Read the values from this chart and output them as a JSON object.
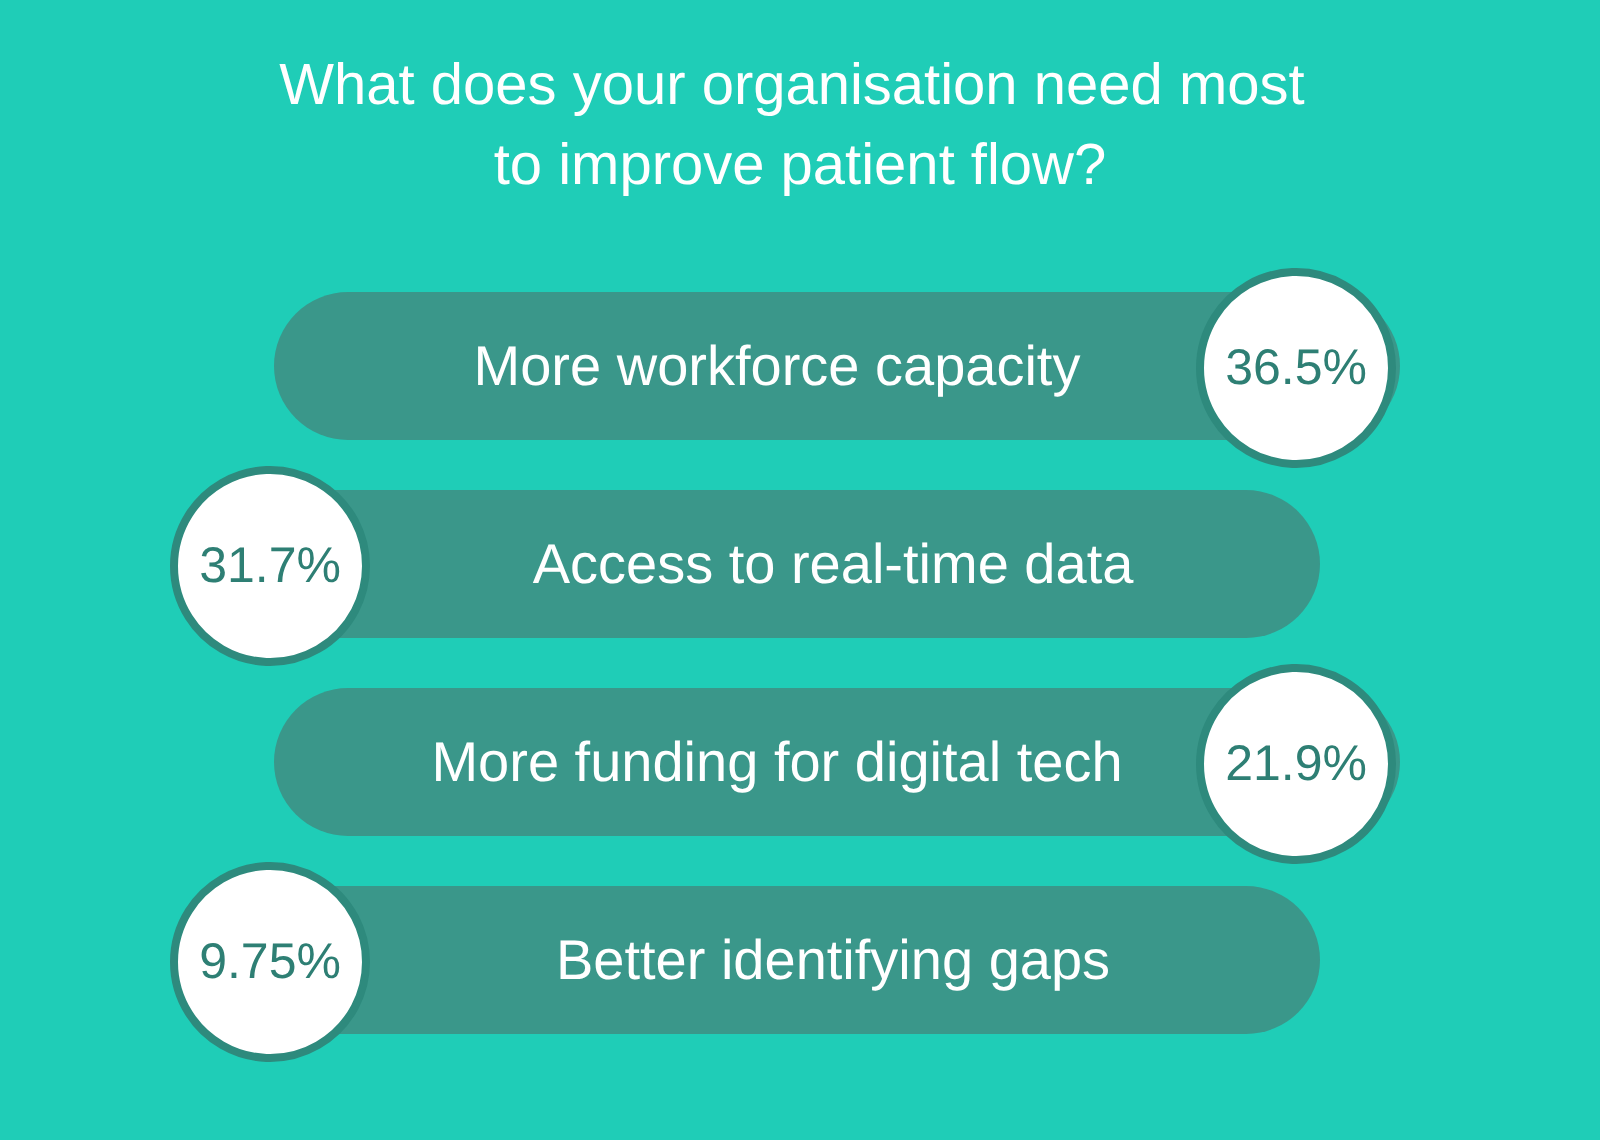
{
  "chart_data": {
    "type": "other",
    "title": "What does your organisation need most to improve patient flow?",
    "categories": [
      "More workforce capacity",
      "Access to real-time data",
      "More funding for digital tech",
      "Better identifying gaps"
    ],
    "values": [
      36.5,
      31.7,
      21.9,
      9.75
    ],
    "value_labels": [
      "36.5%",
      "31.7%",
      "21.9%",
      "9.75%"
    ],
    "color": "#3a978a"
  }
}
